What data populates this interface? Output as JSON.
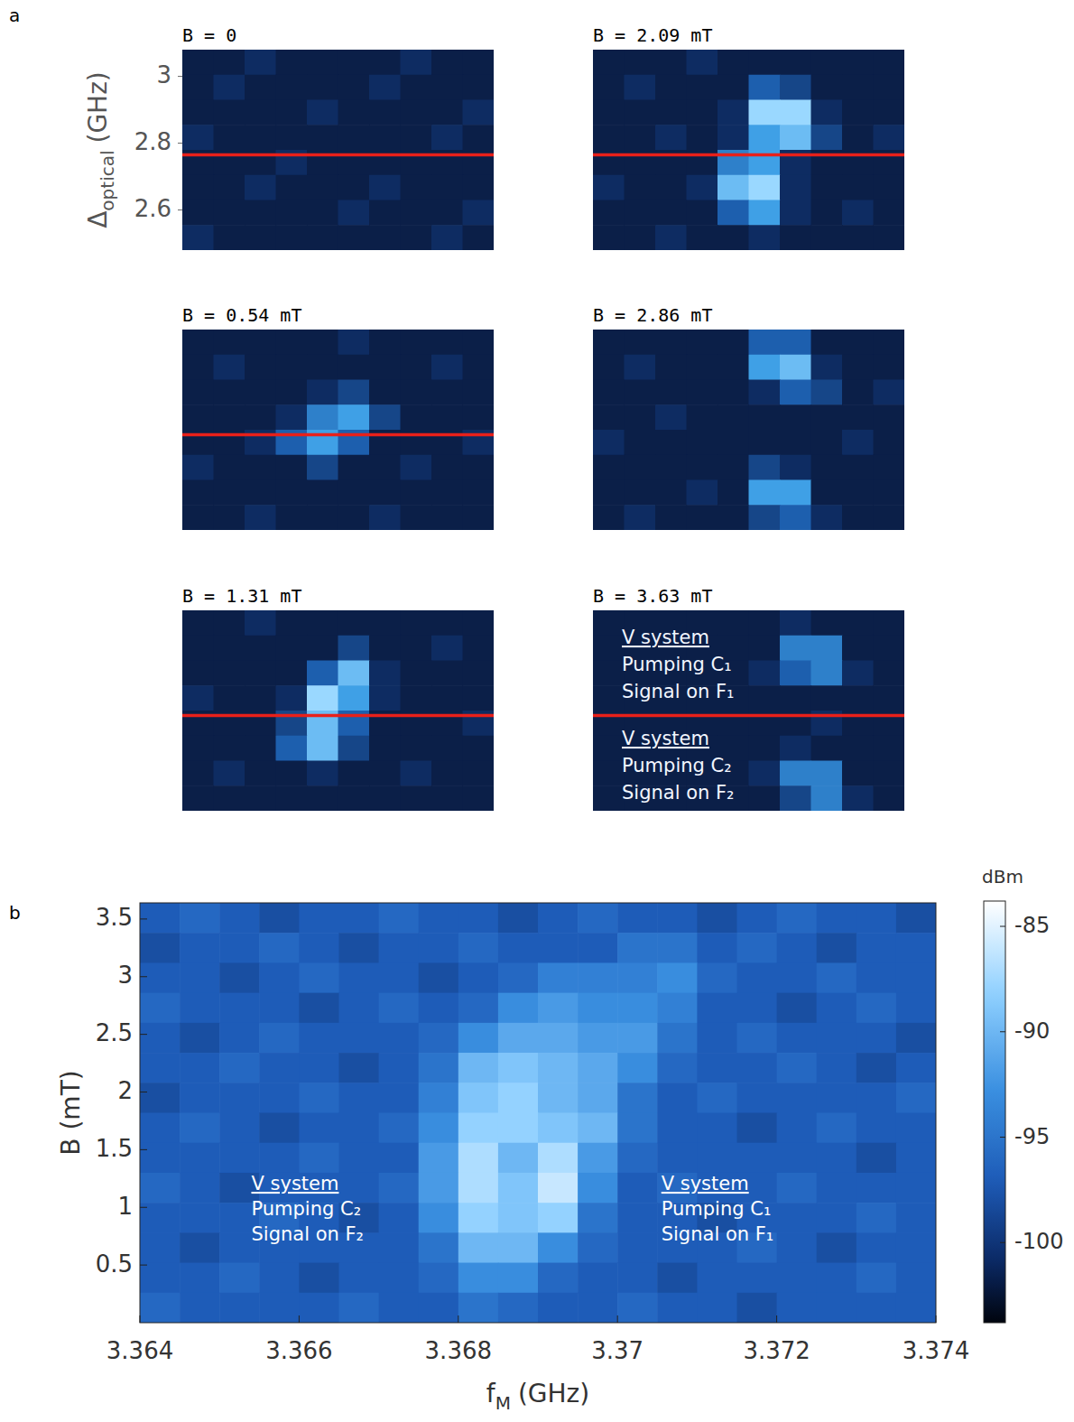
{
  "chart_data": [
    {
      "type": "heatmap",
      "label": "a",
      "ylabel": "Δ",
      "ylabel_sub": "optical",
      "ylabel_unit": "(GHz)",
      "ylim": [
        2.48,
        3.08
      ],
      "yticks": [
        2.6,
        2.8,
        3
      ],
      "zlim": [
        0,
        10
      ],
      "panels": [
        {
          "title": "B = 0",
          "hline": 2.765,
          "z": [
            [
              1,
              1,
              2,
              1,
              1,
              1,
              1,
              2,
              1,
              1
            ],
            [
              1,
              2,
              1,
              1,
              1,
              1,
              2,
              1,
              1,
              1
            ],
            [
              1,
              1,
              1,
              1,
              2,
              1,
              1,
              1,
              1,
              2
            ],
            [
              2,
              1,
              1,
              1,
              1,
              1,
              1,
              1,
              2,
              1
            ],
            [
              1,
              1,
              1,
              2,
              1,
              1,
              1,
              1,
              1,
              1
            ],
            [
              1,
              1,
              2,
              1,
              1,
              1,
              2,
              1,
              1,
              1
            ],
            [
              1,
              1,
              1,
              1,
              1,
              2,
              1,
              1,
              1,
              2
            ],
            [
              2,
              1,
              1,
              1,
              1,
              1,
              1,
              1,
              2,
              1
            ]
          ]
        },
        {
          "title": "B = 2.09 mT",
          "hline": 2.765,
          "z": [
            [
              1,
              1,
              1,
              2,
              1,
              1,
              1,
              1,
              1,
              1
            ],
            [
              1,
              2,
              1,
              1,
              1,
              4,
              3,
              1,
              1,
              1
            ],
            [
              1,
              1,
              1,
              1,
              2,
              8,
              8,
              2,
              1,
              1
            ],
            [
              1,
              1,
              2,
              1,
              2,
              6,
              7,
              3,
              1,
              2
            ],
            [
              1,
              1,
              1,
              1,
              5,
              6,
              2,
              1,
              1,
              1
            ],
            [
              2,
              1,
              1,
              2,
              7,
              8,
              2,
              1,
              1,
              1
            ],
            [
              1,
              1,
              1,
              1,
              4,
              6,
              2,
              1,
              2,
              1
            ],
            [
              1,
              1,
              2,
              1,
              1,
              2,
              1,
              1,
              1,
              1
            ]
          ]
        },
        {
          "title": "B = 0.54 mT",
          "hline": 2.765,
          "z": [
            [
              1,
              1,
              1,
              1,
              1,
              2,
              1,
              1,
              1,
              1
            ],
            [
              1,
              2,
              1,
              1,
              1,
              1,
              1,
              1,
              2,
              1
            ],
            [
              1,
              1,
              1,
              1,
              2,
              3,
              1,
              1,
              1,
              1
            ],
            [
              1,
              1,
              1,
              2,
              5,
              6,
              3,
              1,
              1,
              1
            ],
            [
              1,
              1,
              2,
              4,
              6,
              4,
              1,
              1,
              1,
              2
            ],
            [
              2,
              1,
              1,
              1,
              3,
              1,
              1,
              2,
              1,
              1
            ],
            [
              1,
              1,
              1,
              1,
              1,
              1,
              1,
              1,
              1,
              1
            ],
            [
              1,
              1,
              2,
              1,
              1,
              1,
              2,
              1,
              1,
              1
            ]
          ]
        },
        {
          "title": "B = 2.86 mT",
          "hline": null,
          "z": [
            [
              1,
              1,
              1,
              1,
              1,
              4,
              4,
              1,
              1,
              1
            ],
            [
              1,
              2,
              1,
              1,
              1,
              6,
              7,
              2,
              1,
              1
            ],
            [
              1,
              1,
              1,
              1,
              1,
              2,
              4,
              3,
              1,
              2
            ],
            [
              1,
              1,
              2,
              1,
              1,
              1,
              1,
              1,
              1,
              1
            ],
            [
              2,
              1,
              1,
              1,
              1,
              1,
              1,
              1,
              2,
              1
            ],
            [
              1,
              1,
              1,
              1,
              1,
              3,
              2,
              1,
              1,
              1
            ],
            [
              1,
              1,
              1,
              2,
              1,
              6,
              6,
              1,
              1,
              1
            ],
            [
              1,
              2,
              1,
              1,
              1,
              3,
              4,
              2,
              1,
              1
            ]
          ]
        },
        {
          "title": "B = 1.31 mT",
          "hline": 2.765,
          "z": [
            [
              1,
              1,
              2,
              1,
              1,
              1,
              1,
              1,
              1,
              1
            ],
            [
              1,
              1,
              1,
              1,
              1,
              3,
              1,
              1,
              2,
              1
            ],
            [
              1,
              1,
              1,
              1,
              4,
              7,
              2,
              1,
              1,
              1
            ],
            [
              2,
              1,
              1,
              2,
              8,
              6,
              2,
              1,
              1,
              1
            ],
            [
              1,
              1,
              1,
              3,
              7,
              4,
              1,
              1,
              1,
              2
            ],
            [
              1,
              1,
              1,
              4,
              7,
              3,
              1,
              1,
              1,
              1
            ],
            [
              1,
              2,
              1,
              1,
              2,
              1,
              1,
              2,
              1,
              1
            ],
            [
              1,
              1,
              1,
              1,
              1,
              1,
              1,
              1,
              1,
              1
            ]
          ]
        },
        {
          "title": "B = 3.63 mT",
          "hline": 2.765,
          "z": [
            [
              1,
              1,
              1,
              1,
              1,
              1,
              2,
              1,
              1,
              1
            ],
            [
              1,
              1,
              1,
              1,
              1,
              1,
              5,
              5,
              1,
              1
            ],
            [
              1,
              1,
              1,
              1,
              1,
              2,
              4,
              5,
              2,
              1
            ],
            [
              1,
              1,
              1,
              1,
              1,
              1,
              1,
              1,
              1,
              1
            ],
            [
              1,
              1,
              1,
              1,
              1,
              1,
              1,
              2,
              1,
              1
            ],
            [
              1,
              1,
              1,
              1,
              1,
              1,
              2,
              1,
              1,
              1
            ],
            [
              1,
              1,
              1,
              1,
              1,
              2,
              5,
              5,
              1,
              1
            ],
            [
              1,
              1,
              1,
              1,
              1,
              1,
              3,
              5,
              2,
              1
            ]
          ],
          "annotations": [
            [
              "V system",
              "Pumping C₁",
              "Signal on F₁"
            ],
            [
              "V system",
              "Pumping C₂",
              "Signal on F₂"
            ]
          ]
        }
      ]
    },
    {
      "type": "heatmap",
      "label": "b",
      "xlabel": "f",
      "xlabel_sub": "M",
      "xlabel_unit": "(GHz)",
      "ylabel": "B (mT)",
      "xlim": [
        3.364,
        3.374
      ],
      "xticks": [
        3.364,
        3.366,
        3.368,
        3.37,
        3.372,
        3.374
      ],
      "ylim": [
        0,
        3.64
      ],
      "yticks": [
        0.5,
        1,
        1.5,
        2,
        2.5,
        3,
        3.5
      ],
      "zlim": [
        -103.8,
        -83.8
      ],
      "zticks": [
        -100,
        -95,
        -90,
        -85
      ],
      "zlabel": "dBm",
      "z": [
        [
          -97,
          -96,
          -97,
          -98,
          -97,
          -97,
          -96,
          -97,
          -97,
          -98,
          -97,
          -96,
          -97,
          -97,
          -98,
          -97,
          -96,
          -97,
          -97,
          -98
        ],
        [
          -98,
          -97,
          -97,
          -96,
          -97,
          -98,
          -97,
          -97,
          -96,
          -97,
          -97,
          -97,
          -95,
          -95,
          -97,
          -96,
          -97,
          -98,
          -97,
          -97
        ],
        [
          -97,
          -97,
          -98,
          -97,
          -96,
          -97,
          -97,
          -98,
          -97,
          -96,
          -94,
          -94,
          -94,
          -93,
          -96,
          -97,
          -97,
          -96,
          -97,
          -97
        ],
        [
          -96,
          -97,
          -97,
          -97,
          -98,
          -97,
          -96,
          -97,
          -96,
          -93,
          -92,
          -93,
          -93,
          -94,
          -97,
          -97,
          -98,
          -97,
          -96,
          -97
        ],
        [
          -97,
          -98,
          -97,
          -96,
          -97,
          -97,
          -97,
          -96,
          -93,
          -91,
          -91,
          -92,
          -92,
          -95,
          -97,
          -96,
          -97,
          -97,
          -97,
          -98
        ],
        [
          -97,
          -97,
          -96,
          -97,
          -97,
          -98,
          -97,
          -95,
          -90,
          -89,
          -90,
          -91,
          -93,
          -96,
          -97,
          -97,
          -96,
          -97,
          -98,
          -97
        ],
        [
          -98,
          -97,
          -97,
          -97,
          -96,
          -97,
          -97,
          -94,
          -89,
          -88,
          -90,
          -91,
          -95,
          -97,
          -96,
          -97,
          -97,
          -97,
          -97,
          -96
        ],
        [
          -97,
          -96,
          -97,
          -98,
          -97,
          -97,
          -96,
          -93,
          -88,
          -88,
          -89,
          -90,
          -95,
          -97,
          -97,
          -98,
          -97,
          -96,
          -97,
          -97
        ],
        [
          -97,
          -97,
          -97,
          -97,
          -96,
          -97,
          -97,
          -92,
          -87,
          -90,
          -87,
          -92,
          -96,
          -97,
          -97,
          -97,
          -97,
          -97,
          -98,
          -97
        ],
        [
          -96,
          -97,
          -98,
          -97,
          -97,
          -97,
          -96,
          -92,
          -87,
          -89,
          -86,
          -93,
          -97,
          -96,
          -97,
          -97,
          -96,
          -97,
          -97,
          -97
        ],
        [
          -97,
          -97,
          -97,
          -96,
          -97,
          -98,
          -97,
          -93,
          -88,
          -89,
          -88,
          -95,
          -97,
          -97,
          -98,
          -97,
          -97,
          -97,
          -96,
          -97
        ],
        [
          -97,
          -98,
          -97,
          -97,
          -97,
          -97,
          -97,
          -95,
          -90,
          -90,
          -93,
          -96,
          -97,
          -97,
          -97,
          -96,
          -97,
          -98,
          -97,
          -97
        ],
        [
          -97,
          -97,
          -96,
          -97,
          -98,
          -97,
          -97,
          -96,
          -93,
          -93,
          -96,
          -97,
          -97,
          -98,
          -97,
          -97,
          -97,
          -97,
          -96,
          -97
        ],
        [
          -96,
          -97,
          -97,
          -97,
          -97,
          -96,
          -97,
          -97,
          -95,
          -96,
          -97,
          -97,
          -96,
          -97,
          -97,
          -98,
          -97,
          -97,
          -97,
          -97
        ]
      ],
      "annotations": [
        [
          "V system",
          "Pumping C₂",
          "Signal on F₂"
        ],
        [
          "V system",
          "Pumping C₁",
          "Signal on F₁"
        ]
      ]
    }
  ]
}
